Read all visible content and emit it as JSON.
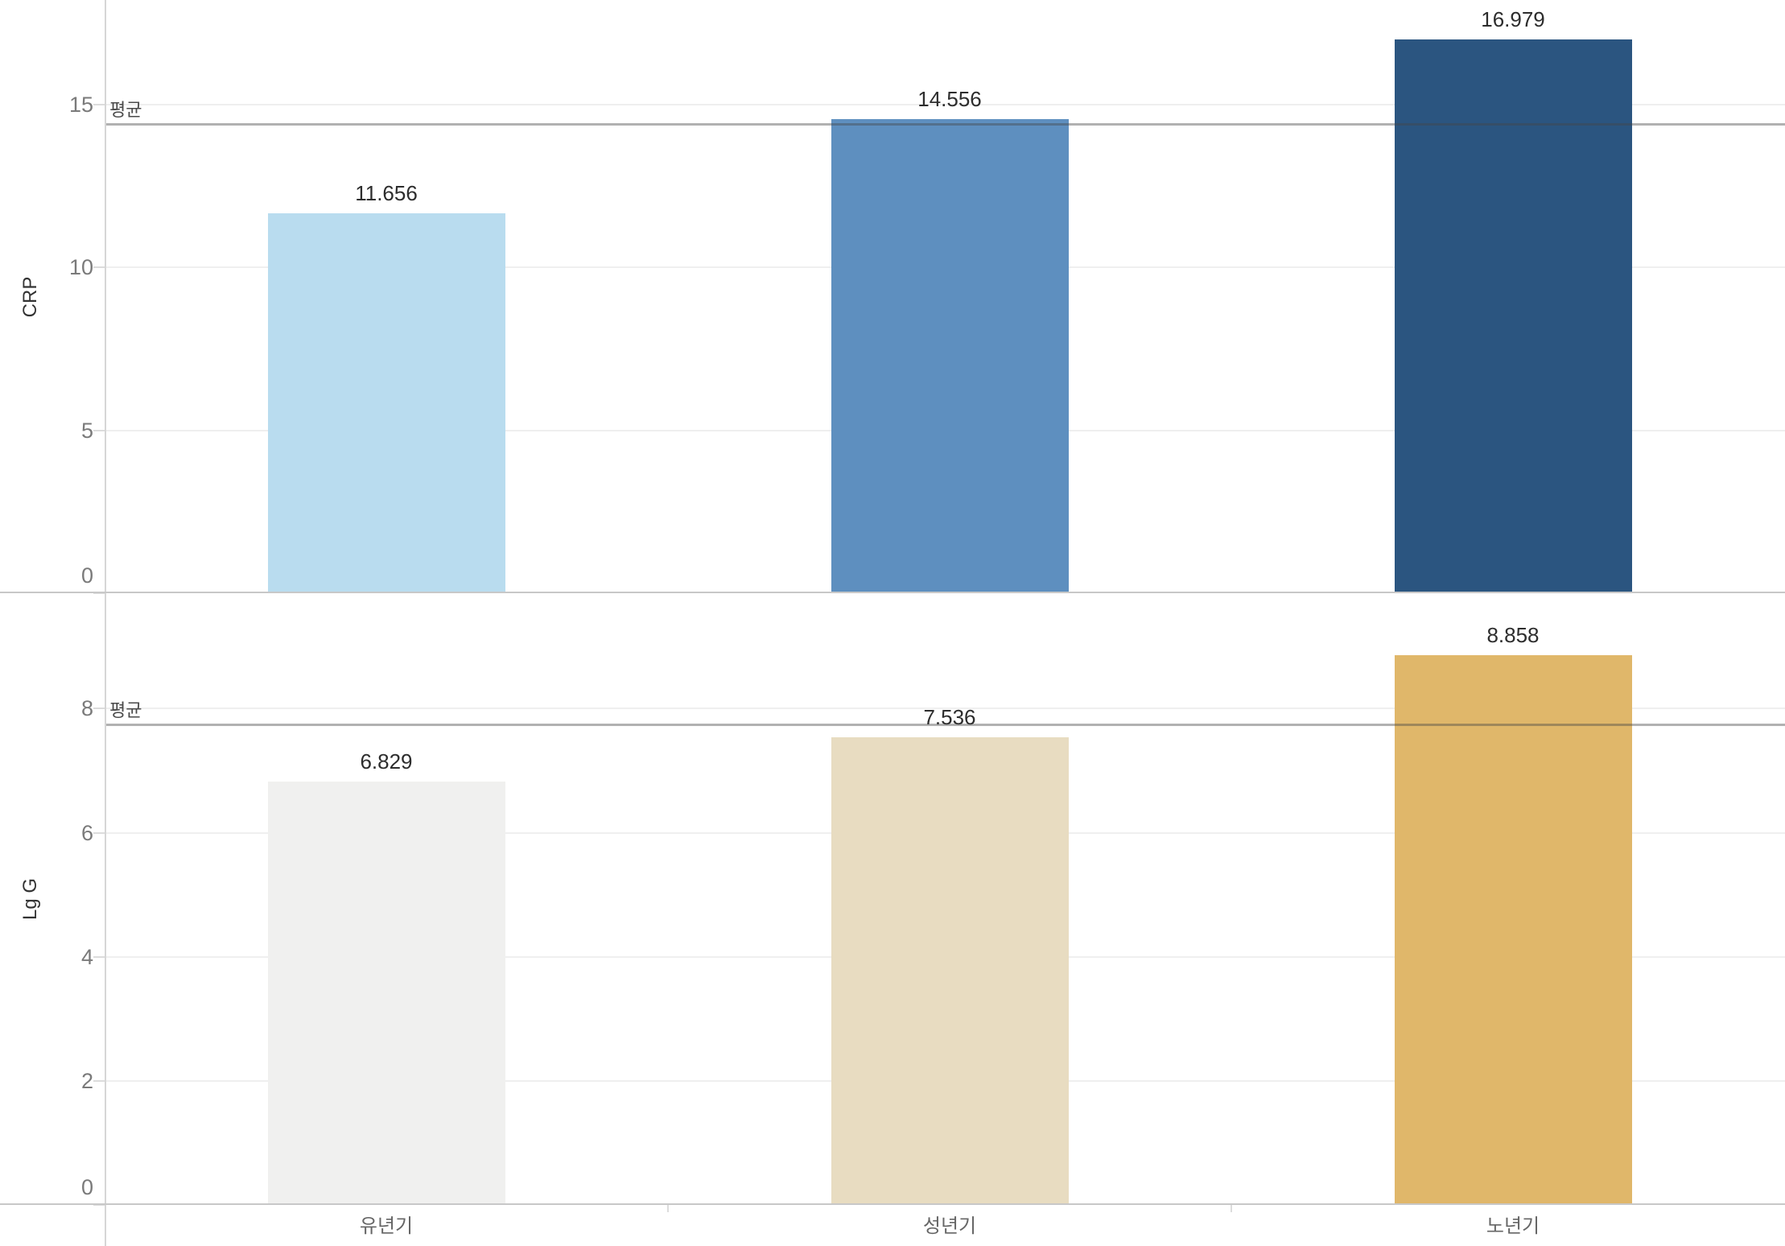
{
  "page": {
    "background": "#ffffff"
  },
  "chart_data": [
    {
      "type": "bar",
      "pane": "top",
      "title": "",
      "xlabel": "",
      "ylabel": "CRP",
      "categories": [
        "유년기",
        "성년기",
        "노년기"
      ],
      "values": [
        11.656,
        14.556,
        16.979
      ],
      "value_labels": [
        "11.656",
        "14.556",
        "16.979"
      ],
      "bar_colors": [
        "#b9dcef",
        "#5e8fbf",
        "#2b5580"
      ],
      "yticks": [
        0,
        5,
        10,
        15
      ],
      "ytick_labels": [
        "0",
        "5",
        "10",
        "15"
      ],
      "ylim": [
        0,
        18.2
      ],
      "grid": true,
      "legend": "none",
      "reference_line": {
        "label": "평균",
        "value": 14.397
      }
    },
    {
      "type": "bar",
      "pane": "bottom",
      "title": "",
      "xlabel": "",
      "ylabel": "Lg G",
      "categories": [
        "유년기",
        "성년기",
        "노년기"
      ],
      "values": [
        6.829,
        7.536,
        8.858
      ],
      "value_labels": [
        "6.829",
        "7.536",
        "8.858"
      ],
      "bar_colors": [
        "#f0f0ef",
        "#e8dcc1",
        "#e0b76a"
      ],
      "yticks": [
        0,
        2,
        4,
        6,
        8
      ],
      "ytick_labels": [
        "0",
        "2",
        "4",
        "6",
        "8"
      ],
      "ylim": [
        0,
        9.86
      ],
      "grid": true,
      "legend": "none",
      "reference_line": {
        "label": "평균",
        "value": 7.741
      }
    }
  ],
  "colors": {
    "y_axis_line": "#d6d6d6",
    "grid_line": "#efefef",
    "tick_mark": "#dcdcdc",
    "frame_line": "#c8c8c8",
    "reference_line_over_white": "#9b9b9b",
    "tick_label": "#7a7a7a",
    "value_label": "#2d2d2d",
    "category_label": "#666666",
    "axis_title": "#333333",
    "reference_label": "#4a4a4a"
  }
}
